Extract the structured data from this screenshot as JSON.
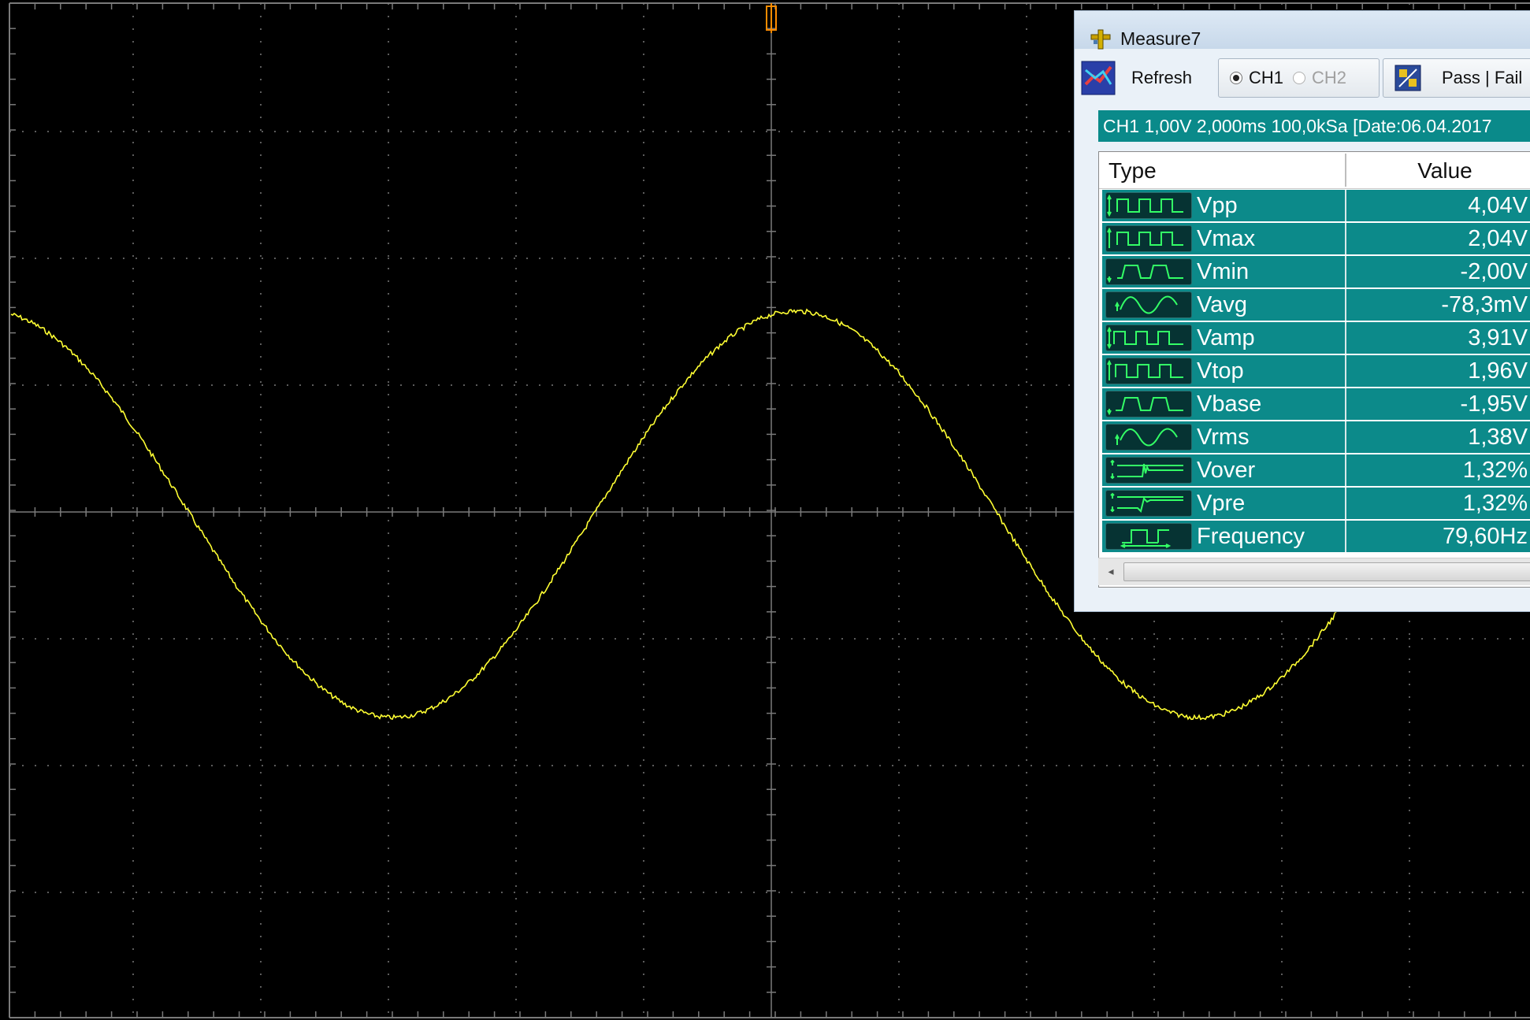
{
  "scope": {
    "trace_color": "#ffff33",
    "grid_color": "#7a7a7a",
    "trigger_marker_color": "#ff8c00"
  },
  "measure": {
    "title": "Measure7",
    "toolbar": {
      "refresh_label": "Refresh",
      "ch1_label": "CH1",
      "ch2_label": "CH2",
      "ch1_selected": true,
      "pass_fail_label": "Pass | Fail"
    },
    "info": "CH1 1,00V  2,000ms 100,0kSa  [Date:06.04.2017",
    "columns": {
      "type": "Type",
      "value": "Value"
    },
    "rows": [
      {
        "type": "Vpp",
        "value": "4,04V",
        "icon": "vpp-icon"
      },
      {
        "type": "Vmax",
        "value": "2,04V",
        "icon": "vmax-icon"
      },
      {
        "type": "Vmin",
        "value": "-2,00V",
        "icon": "vmin-icon"
      },
      {
        "type": "Vavg",
        "value": "-78,3mV",
        "icon": "vavg-icon"
      },
      {
        "type": "Vamp",
        "value": "3,91V",
        "icon": "vamp-icon"
      },
      {
        "type": "Vtop",
        "value": "1,96V",
        "icon": "vtop-icon"
      },
      {
        "type": "Vbase",
        "value": "-1,95V",
        "icon": "vbase-icon"
      },
      {
        "type": "Vrms",
        "value": "1,38V",
        "icon": "vrms-icon"
      },
      {
        "type": "Vover",
        "value": "1,32%",
        "icon": "vover-icon"
      },
      {
        "type": "Vpre",
        "value": "1,32%",
        "icon": "vpre-icon"
      },
      {
        "type": "Frequency",
        "value": "79,60Hz",
        "icon": "frequency-icon"
      }
    ]
  }
}
